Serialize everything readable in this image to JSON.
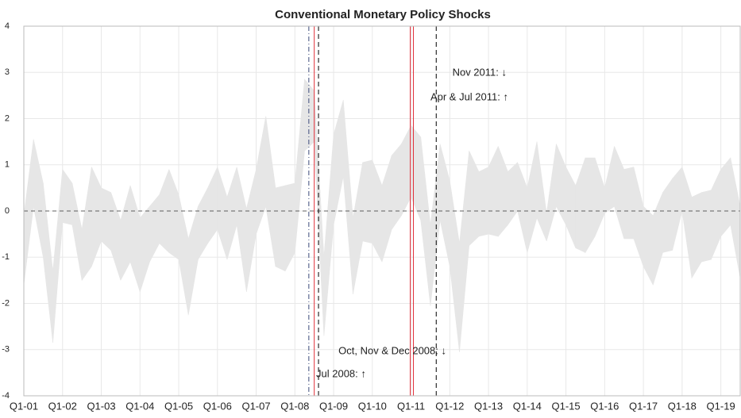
{
  "chart_data": {
    "type": "band",
    "title": "Conventional Monetary Policy Shocks",
    "x": [
      2001,
      2001.25,
      2001.5,
      2001.75,
      2002,
      2002.25,
      2002.5,
      2002.75,
      2003,
      2003.25,
      2003.5,
      2003.75,
      2004,
      2004.25,
      2004.5,
      2004.75,
      2005,
      2005.25,
      2005.5,
      2005.75,
      2006,
      2006.25,
      2006.5,
      2006.75,
      2007,
      2007.25,
      2007.5,
      2007.75,
      2008,
      2008.25,
      2008.5,
      2008.75,
      2009,
      2009.25,
      2009.5,
      2009.75,
      2010,
      2010.25,
      2010.5,
      2010.75,
      2011,
      2011.25,
      2011.5,
      2011.75,
      2012,
      2012.25,
      2012.5,
      2012.75,
      2013,
      2013.25,
      2013.5,
      2013.75,
      2014,
      2014.25,
      2014.5,
      2014.75,
      2015,
      2015.25,
      2015.5,
      2015.75,
      2016,
      2016.25,
      2016.5,
      2016.75,
      2017,
      2017.25,
      2017.5,
      2017.75,
      2018,
      2018.25,
      2018.5,
      2018.75,
      2019,
      2019.25,
      2019.5
    ],
    "upper": [
      -0.1,
      1.55,
      0.6,
      -1.3,
      0.9,
      0.6,
      -0.4,
      0.95,
      0.5,
      0.4,
      -0.2,
      0.55,
      -0.15,
      0.1,
      0.35,
      0.9,
      0.35,
      -0.6,
      0.1,
      0.5,
      0.95,
      0.3,
      0.95,
      0.05,
      0.9,
      2.05,
      0.5,
      0.55,
      0.6,
      2.85,
      2.6,
      -1.0,
      1.65,
      2.4,
      -0.15,
      1.05,
      1.1,
      0.55,
      1.2,
      1.45,
      1.85,
      1.6,
      -0.3,
      1.45,
      0.65,
      -0.7,
      1.3,
      0.85,
      0.95,
      1.4,
      0.85,
      1.05,
      0.5,
      1.5,
      -0.05,
      1.45,
      0.95,
      0.55,
      1.15,
      1.15,
      0.5,
      1.4,
      0.9,
      0.95,
      0.1,
      -0.1,
      0.4,
      0.7,
      0.95,
      0.3,
      0.4,
      0.45,
      0.9,
      1.15,
      0.1
    ],
    "lower": [
      -1.6,
      0.1,
      -1.0,
      -2.85,
      -0.25,
      -0.3,
      -1.5,
      -1.2,
      -0.65,
      -0.85,
      -1.5,
      -1.1,
      -1.75,
      -1.1,
      -0.7,
      -0.9,
      -1.05,
      -2.25,
      -1.05,
      -0.7,
      -0.4,
      -1.05,
      -0.3,
      -1.75,
      -0.5,
      0.1,
      -1.2,
      -1.3,
      -0.9,
      1.3,
      1.5,
      -2.7,
      -0.3,
      0.75,
      -1.8,
      -0.65,
      -0.7,
      -1.1,
      -0.4,
      -0.1,
      0.3,
      -0.2,
      -2.05,
      -0.2,
      -1.2,
      -3.05,
      -0.75,
      -0.55,
      -0.5,
      -0.55,
      -0.3,
      0.0,
      -0.9,
      -0.15,
      -0.65,
      0.1,
      -0.3,
      -0.8,
      -0.9,
      -0.55,
      -0.05,
      0.1,
      -0.6,
      -0.6,
      -1.2,
      -1.6,
      -0.9,
      -0.85,
      0.0,
      -1.45,
      -1.1,
      -1.05,
      -0.55,
      -0.3,
      -1.45
    ],
    "band_color": "#e6e6e6",
    "xlim": [
      2001,
      2019.5
    ],
    "ylim": [
      -4,
      4
    ],
    "xticks": [
      {
        "value": 2001,
        "label": "Q1-01"
      },
      {
        "value": 2002,
        "label": "Q1-02"
      },
      {
        "value": 2003,
        "label": "Q1-03"
      },
      {
        "value": 2004,
        "label": "Q1-04"
      },
      {
        "value": 2005,
        "label": "Q1-05"
      },
      {
        "value": 2006,
        "label": "Q1-06"
      },
      {
        "value": 2007,
        "label": "Q1-07"
      },
      {
        "value": 2008,
        "label": "Q1-08"
      },
      {
        "value": 2009,
        "label": "Q1-09"
      },
      {
        "value": 2010,
        "label": "Q1-10"
      },
      {
        "value": 2011,
        "label": "Q1-11"
      },
      {
        "value": 2012,
        "label": "Q1-12"
      },
      {
        "value": 2013,
        "label": "Q1-13"
      },
      {
        "value": 2014,
        "label": "Q1-14"
      },
      {
        "value": 2015,
        "label": "Q1-15"
      },
      {
        "value": 2016,
        "label": "Q1-16"
      },
      {
        "value": 2017,
        "label": "Q1-17"
      },
      {
        "value": 2018,
        "label": "Q1-18"
      },
      {
        "value": 2019,
        "label": "Q1-19"
      }
    ],
    "yticks": [
      -4,
      -3,
      -2,
      -1,
      0,
      1,
      2,
      3,
      4
    ],
    "grid": true,
    "zero_line": true,
    "event_lines": [
      {
        "x": 2008.36,
        "color": "#3c4a7a",
        "style": "dashdot"
      },
      {
        "x": 2008.5,
        "color": "#e0303a",
        "style": "solid"
      },
      {
        "x": 2008.61,
        "color": "#000000",
        "style": "dashed"
      },
      {
        "x": 2010.98,
        "color": "#e0303a",
        "style": "solid"
      },
      {
        "x": 2011.06,
        "color": "#e0303a",
        "style": "solid"
      },
      {
        "x": 2011.65,
        "color": "#000000",
        "style": "dashed"
      }
    ],
    "annotations": [
      "Nov 2011: ↓",
      "Apr & Jul 2011: ↑",
      "Oct, Nov & Dec 2008: ↓",
      "Jul 2008: ↑"
    ]
  }
}
